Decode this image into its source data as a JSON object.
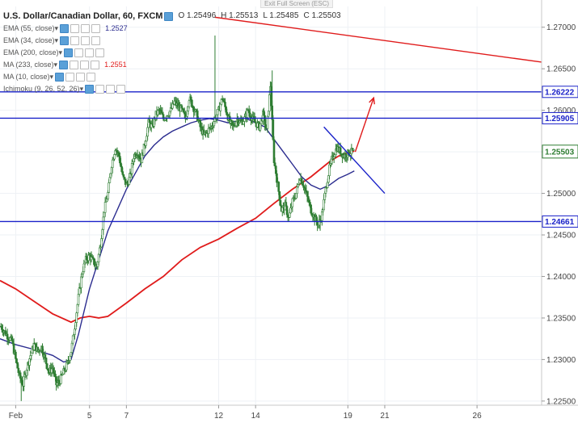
{
  "window": {
    "exit_fullscreen": "Exit Full Screen (ESC)"
  },
  "colors": {
    "candle": "#2e7d32",
    "ma_long": "#e01b1b",
    "ma_short": "#2b2c8f",
    "hline": "#1a22c9",
    "trend": "#e01b1b",
    "wedge": "#1a22c9",
    "arrow": "#e01b1b",
    "price_tag": "#2e7d32"
  },
  "chart_data": {
    "type": "candlestick",
    "title": "U.S. Dollar/Canadian Dollar, 60, FXCM",
    "ohlc": {
      "o": "O 1.25496",
      "h": "H 1.25513",
      "l": "L 1.25485",
      "c": "C 1.25503"
    },
    "indicators": [
      {
        "label": "EMA (55, close)",
        "value": "1.2527",
        "color": "#2b2c8f"
      },
      {
        "label": "EMA (34, close)",
        "value": "",
        "color": ""
      },
      {
        "label": "EMA (200, close)",
        "value": "",
        "color": ""
      },
      {
        "label": "MA (233, close)",
        "value": "1.2551",
        "color": "#e01b1b"
      },
      {
        "label": "MA (10, close)",
        "value": "",
        "color": ""
      },
      {
        "label": "Ichimoku (9, 26, 52, 26)",
        "value": "",
        "color": ""
      }
    ],
    "ylim": [
      1.2245,
      1.2725
    ],
    "y_ticks": [
      1.27,
      1.265,
      1.26,
      1.255,
      1.25,
      1.245,
      1.24,
      1.235,
      1.23,
      1.225
    ],
    "y_tick_labels": [
      "1.27000",
      "1.26500",
      "1.26000",
      "1.25500",
      "1.25000",
      "1.24500",
      "1.24000",
      "1.23500",
      "1.23000",
      "1.22500"
    ],
    "x_ticks": [
      {
        "label": "Feb",
        "x": 1
      },
      {
        "label": "5",
        "x": 5
      },
      {
        "label": "7",
        "x": 7
      },
      {
        "label": "12",
        "x": 12
      },
      {
        "label": "14",
        "x": 14
      },
      {
        "label": "19",
        "x": 19
      },
      {
        "label": "21",
        "x": 21
      },
      {
        "label": "26",
        "x": 26
      }
    ],
    "xlim": [
      0.15,
      29.5
    ],
    "horizontal_lines": [
      {
        "y": 1.26222,
        "label": "1.26222"
      },
      {
        "y": 1.25905,
        "label": "1.25905"
      },
      {
        "y": 1.24661,
        "label": "1.24661"
      }
    ],
    "current_price": {
      "y": 1.25503,
      "label": "1.25503"
    },
    "price_path": [
      [
        0.2,
        1.234
      ],
      [
        0.5,
        1.233
      ],
      [
        0.8,
        1.2322
      ],
      [
        1.0,
        1.23
      ],
      [
        1.2,
        1.228
      ],
      [
        1.4,
        1.227
      ],
      [
        1.6,
        1.229
      ],
      [
        1.8,
        1.2305
      ],
      [
        2.0,
        1.2318
      ],
      [
        2.2,
        1.231
      ],
      [
        2.4,
        1.2315
      ],
      [
        2.6,
        1.23
      ],
      [
        2.8,
        1.2285
      ],
      [
        3.0,
        1.229
      ],
      [
        3.2,
        1.227
      ],
      [
        3.4,
        1.2275
      ],
      [
        3.6,
        1.2285
      ],
      [
        3.8,
        1.2295
      ],
      [
        4.0,
        1.231
      ],
      [
        4.2,
        1.234
      ],
      [
        4.4,
        1.2375
      ],
      [
        4.6,
        1.2405
      ],
      [
        4.8,
        1.242
      ],
      [
        5.0,
        1.2425
      ],
      [
        5.2,
        1.2418
      ],
      [
        5.4,
        1.2412
      ],
      [
        5.6,
        1.244
      ],
      [
        5.8,
        1.248
      ],
      [
        6.0,
        1.25
      ],
      [
        6.2,
        1.2535
      ],
      [
        6.4,
        1.2555
      ],
      [
        6.6,
        1.2545
      ],
      [
        6.8,
        1.252
      ],
      [
        7.0,
        1.251
      ],
      [
        7.2,
        1.252
      ],
      [
        7.4,
        1.2545
      ],
      [
        7.6,
        1.255
      ],
      [
        7.8,
        1.254
      ],
      [
        8.0,
        1.256
      ],
      [
        8.2,
        1.2585
      ],
      [
        8.4,
        1.258
      ],
      [
        8.6,
        1.2595
      ],
      [
        8.8,
        1.26
      ],
      [
        9.0,
        1.259
      ],
      [
        9.2,
        1.2595
      ],
      [
        9.4,
        1.26
      ],
      [
        9.6,
        1.261
      ],
      [
        9.8,
        1.2605
      ],
      [
        10.0,
        1.26
      ],
      [
        10.2,
        1.259
      ],
      [
        10.4,
        1.2615
      ],
      [
        10.6,
        1.2605
      ],
      [
        10.8,
        1.2595
      ],
      [
        11.0,
        1.258
      ],
      [
        11.2,
        1.257
      ],
      [
        11.4,
        1.2575
      ],
      [
        11.6,
        1.258
      ],
      [
        11.8,
        1.259
      ],
      [
        12.0,
        1.26
      ],
      [
        12.2,
        1.2615
      ],
      [
        12.4,
        1.26
      ],
      [
        12.6,
        1.2585
      ],
      [
        12.8,
        1.258
      ],
      [
        13.0,
        1.259
      ],
      [
        13.2,
        1.2585
      ],
      [
        13.4,
        1.259
      ],
      [
        13.6,
        1.26
      ],
      [
        13.8,
        1.259
      ],
      [
        14.0,
        1.2585
      ],
      [
        14.2,
        1.258
      ],
      [
        14.4,
        1.2595
      ],
      [
        14.6,
        1.2575
      ],
      [
        14.8,
        1.263
      ],
      [
        15.0,
        1.254
      ],
      [
        15.2,
        1.251
      ],
      [
        15.4,
        1.248
      ],
      [
        15.6,
        1.2485
      ],
      [
        15.8,
        1.247
      ],
      [
        16.0,
        1.249
      ],
      [
        16.2,
        1.25
      ],
      [
        16.4,
        1.252
      ],
      [
        16.6,
        1.251
      ],
      [
        16.8,
        1.2495
      ],
      [
        17.0,
        1.248
      ],
      [
        17.2,
        1.247
      ],
      [
        17.4,
        1.2462
      ],
      [
        17.6,
        1.2475
      ],
      [
        17.8,
        1.2505
      ],
      [
        18.0,
        1.253
      ],
      [
        18.2,
        1.2545
      ],
      [
        18.4,
        1.2555
      ],
      [
        18.6,
        1.255
      ],
      [
        18.8,
        1.2545
      ],
      [
        19.0,
        1.2548
      ],
      [
        19.2,
        1.255
      ],
      [
        19.35,
        1.255
      ]
    ],
    "ma_long": [
      [
        0.15,
        1.2395
      ],
      [
        1.0,
        1.2385
      ],
      [
        2.0,
        1.237
      ],
      [
        3.0,
        1.2355
      ],
      [
        4.0,
        1.2345
      ],
      [
        4.5,
        1.235
      ],
      [
        5.0,
        1.2352
      ],
      [
        5.5,
        1.235
      ],
      [
        6.0,
        1.2352
      ],
      [
        7.0,
        1.2368
      ],
      [
        8.0,
        1.2385
      ],
      [
        9.0,
        1.24
      ],
      [
        10.0,
        1.242
      ],
      [
        11.0,
        1.2435
      ],
      [
        12.0,
        1.2445
      ],
      [
        13.0,
        1.2458
      ],
      [
        14.0,
        1.247
      ],
      [
        15.0,
        1.2488
      ],
      [
        16.0,
        1.2505
      ],
      [
        17.0,
        1.252
      ],
      [
        18.0,
        1.2538
      ],
      [
        18.5,
        1.2545
      ],
      [
        19.35,
        1.2551
      ]
    ],
    "ma_short": [
      [
        0.15,
        1.2325
      ],
      [
        1.0,
        1.2318
      ],
      [
        2.0,
        1.2312
      ],
      [
        3.0,
        1.2305
      ],
      [
        3.6,
        1.2297
      ],
      [
        4.0,
        1.23
      ],
      [
        4.4,
        1.233
      ],
      [
        5.0,
        1.2385
      ],
      [
        5.5,
        1.242
      ],
      [
        6.0,
        1.2455
      ],
      [
        6.5,
        1.248
      ],
      [
        7.0,
        1.2505
      ],
      [
        7.5,
        1.2525
      ],
      [
        8.0,
        1.2545
      ],
      [
        8.5,
        1.2558
      ],
      [
        9.0,
        1.2568
      ],
      [
        9.5,
        1.2575
      ],
      [
        10.0,
        1.258
      ],
      [
        10.5,
        1.2585
      ],
      [
        11.0,
        1.2588
      ],
      [
        11.5,
        1.259
      ],
      [
        12.0,
        1.2588
      ],
      [
        12.5,
        1.2585
      ],
      [
        13.0,
        1.2587
      ],
      [
        13.5,
        1.259
      ],
      [
        14.0,
        1.2585
      ],
      [
        14.5,
        1.258
      ],
      [
        15.0,
        1.2565
      ],
      [
        15.5,
        1.255
      ],
      [
        16.0,
        1.2535
      ],
      [
        16.5,
        1.252
      ],
      [
        17.0,
        1.251
      ],
      [
        17.5,
        1.2505
      ],
      [
        18.0,
        1.251
      ],
      [
        18.5,
        1.2518
      ],
      [
        19.0,
        1.2523
      ],
      [
        19.35,
        1.2527
      ]
    ],
    "trendlines": [
      {
        "kind": "resistance",
        "from": [
          11.8,
          1.2712
        ],
        "to": [
          29.5,
          1.2658
        ]
      },
      {
        "kind": "wedge",
        "from": [
          17.7,
          1.258
        ],
        "to": [
          21.0,
          1.25
        ]
      }
    ],
    "projection_arrow": {
      "from": [
        19.4,
        1.255
      ],
      "to": [
        20.4,
        1.2615
      ]
    }
  }
}
